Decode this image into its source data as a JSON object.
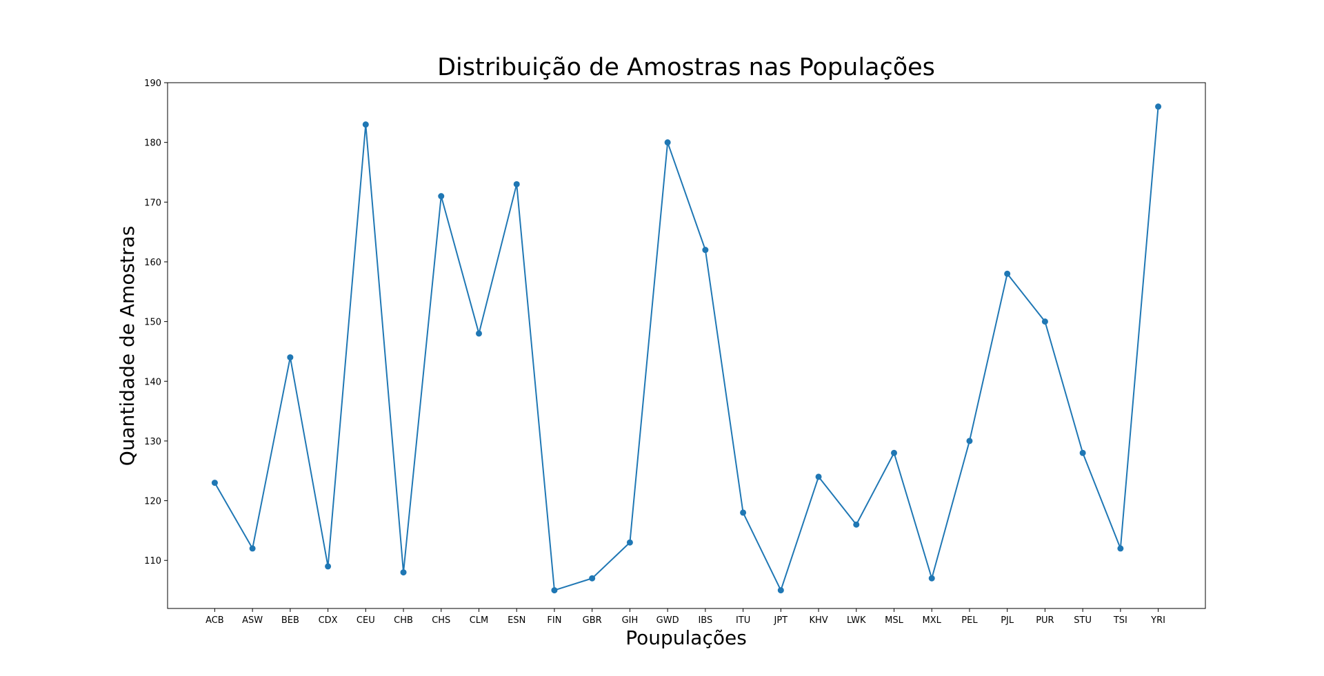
{
  "chart_data": {
    "type": "line",
    "title": "Distribuição de Amostras nas Populações",
    "xlabel": "Poupulações",
    "ylabel": "Quantidade de Amostras",
    "categories": [
      "ACB",
      "ASW",
      "BEB",
      "CDX",
      "CEU",
      "CHB",
      "CHS",
      "CLM",
      "ESN",
      "FIN",
      "GBR",
      "GIH",
      "GWD",
      "IBS",
      "ITU",
      "JPT",
      "KHV",
      "LWK",
      "MSL",
      "MXL",
      "PEL",
      "PJL",
      "PUR",
      "STU",
      "TSI",
      "YRI"
    ],
    "series": [
      {
        "values": [
          123,
          112,
          144,
          109,
          183,
          108,
          171,
          148,
          173,
          105,
          107,
          113,
          180,
          162,
          118,
          105,
          124,
          116,
          128,
          107,
          130,
          158,
          150,
          128,
          112,
          186
        ],
        "color": "#1f77b4",
        "marker": "circle"
      }
    ],
    "yticks": [
      110,
      120,
      130,
      140,
      150,
      160,
      170,
      180,
      190
    ],
    "ylim": [
      101.95,
      190
    ],
    "grid": false,
    "legend": "none"
  }
}
